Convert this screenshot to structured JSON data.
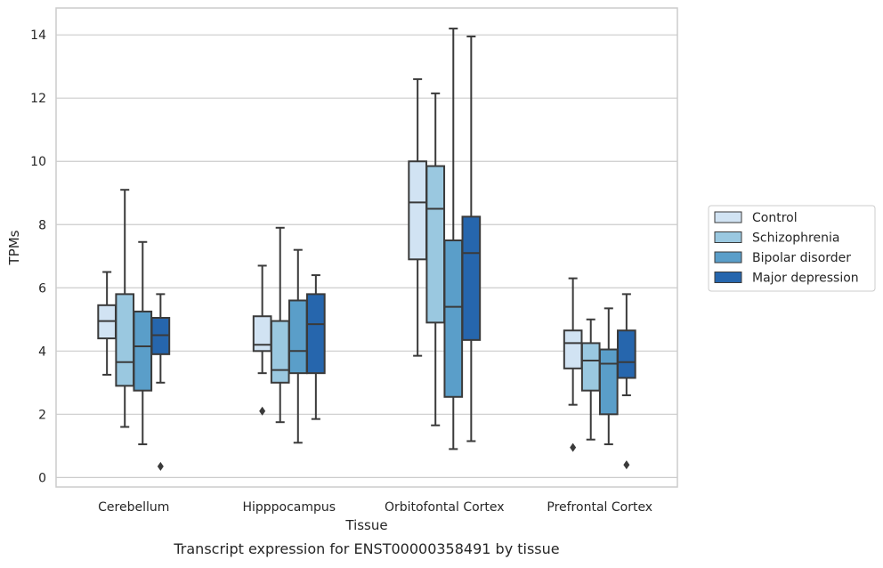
{
  "chart_data": {
    "type": "boxplot",
    "title": "Transcript expression for ENST00000358491 by tissue",
    "xlabel": "Tissue",
    "ylabel": "TPMs",
    "ylim": [
      -0.3,
      14.85
    ],
    "yticks": [
      0,
      2,
      4,
      6,
      8,
      10,
      12,
      14
    ],
    "grid": true,
    "legend_position": "right",
    "categories": [
      "Cerebellum",
      "Hipppocampus",
      "Orbitofontal Cortex",
      "Prefrontal Cortex"
    ],
    "series": [
      {
        "name": "Control",
        "color": "#d1e3f3",
        "boxes": [
          {
            "whisker_low": 3.25,
            "q1": 4.4,
            "median": 4.95,
            "q3": 5.45,
            "whisker_high": 6.5,
            "outliers": []
          },
          {
            "whisker_low": 3.3,
            "q1": 4.0,
            "median": 4.2,
            "q3": 5.1,
            "whisker_high": 6.7,
            "outliers": [
              2.1
            ]
          },
          {
            "whisker_low": 3.85,
            "q1": 6.9,
            "median": 8.7,
            "q3": 10.0,
            "whisker_high": 12.6,
            "outliers": []
          },
          {
            "whisker_low": 2.3,
            "q1": 3.45,
            "median": 4.25,
            "q3": 4.65,
            "whisker_high": 6.3,
            "outliers": [
              0.95
            ]
          }
        ]
      },
      {
        "name": "Schizophrenia",
        "color": "#9ac8e0",
        "boxes": [
          {
            "whisker_low": 1.6,
            "q1": 2.9,
            "median": 3.65,
            "q3": 5.8,
            "whisker_high": 9.1,
            "outliers": []
          },
          {
            "whisker_low": 1.75,
            "q1": 3.0,
            "median": 3.4,
            "q3": 4.95,
            "whisker_high": 7.9,
            "outliers": []
          },
          {
            "whisker_low": 1.65,
            "q1": 4.9,
            "median": 8.5,
            "q3": 9.85,
            "whisker_high": 12.15,
            "outliers": []
          },
          {
            "whisker_low": 1.2,
            "q1": 2.75,
            "median": 3.7,
            "q3": 4.25,
            "whisker_high": 5.0,
            "outliers": []
          }
        ]
      },
      {
        "name": "Bipolar disorder",
        "color": "#5a9ec9",
        "boxes": [
          {
            "whisker_low": 1.05,
            "q1": 2.75,
            "median": 4.15,
            "q3": 5.25,
            "whisker_high": 7.45,
            "outliers": []
          },
          {
            "whisker_low": 1.1,
            "q1": 3.3,
            "median": 4.0,
            "q3": 5.6,
            "whisker_high": 7.2,
            "outliers": []
          },
          {
            "whisker_low": 0.9,
            "q1": 2.55,
            "median": 5.4,
            "q3": 7.5,
            "whisker_high": 14.2,
            "outliers": []
          },
          {
            "whisker_low": 1.05,
            "q1": 2.0,
            "median": 3.6,
            "q3": 4.05,
            "whisker_high": 5.35,
            "outliers": []
          }
        ]
      },
      {
        "name": "Major depression",
        "color": "#2666ad",
        "boxes": [
          {
            "whisker_low": 3.0,
            "q1": 3.9,
            "median": 4.5,
            "q3": 5.05,
            "whisker_high": 5.8,
            "outliers": [
              0.35
            ]
          },
          {
            "whisker_low": 1.85,
            "q1": 3.3,
            "median": 4.85,
            "q3": 5.8,
            "whisker_high": 6.4,
            "outliers": []
          },
          {
            "whisker_low": 1.15,
            "q1": 4.35,
            "median": 7.1,
            "q3": 8.25,
            "whisker_high": 13.95,
            "outliers": []
          },
          {
            "whisker_low": 2.6,
            "q1": 3.15,
            "median": 3.65,
            "q3": 4.65,
            "whisker_high": 5.8,
            "outliers": [
              0.4
            ]
          }
        ]
      }
    ]
  }
}
